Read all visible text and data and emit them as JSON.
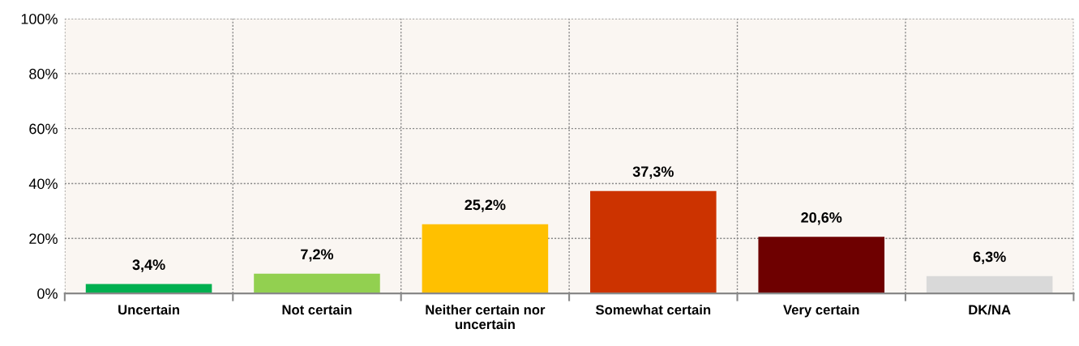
{
  "chart_data": {
    "type": "bar",
    "categories": [
      "Uncertain",
      "Not certain",
      "Neither certain nor uncertain",
      "Somewhat certain",
      "Very certain",
      "DK/NA"
    ],
    "values": [
      3.4,
      7.2,
      25.2,
      37.3,
      20.6,
      6.3
    ],
    "colors": [
      "#00b050",
      "#92d050",
      "#ffc000",
      "#cc3300",
      "#6e0000",
      "#d9d9d9"
    ],
    "value_labels": [
      "3,4%",
      "7,2%",
      "25,2%",
      "37,3%",
      "20,6%",
      "6,3%"
    ],
    "ylim": [
      0,
      100
    ],
    "yticks": [
      {
        "value": 0,
        "label": "0%"
      },
      {
        "value": 20,
        "label": "20%"
      },
      {
        "value": 40,
        "label": "40%"
      },
      {
        "value": 60,
        "label": "60%"
      },
      {
        "value": 80,
        "label": "80%"
      },
      {
        "value": 100,
        "label": "100%"
      }
    ],
    "grid": true,
    "legend": false
  }
}
